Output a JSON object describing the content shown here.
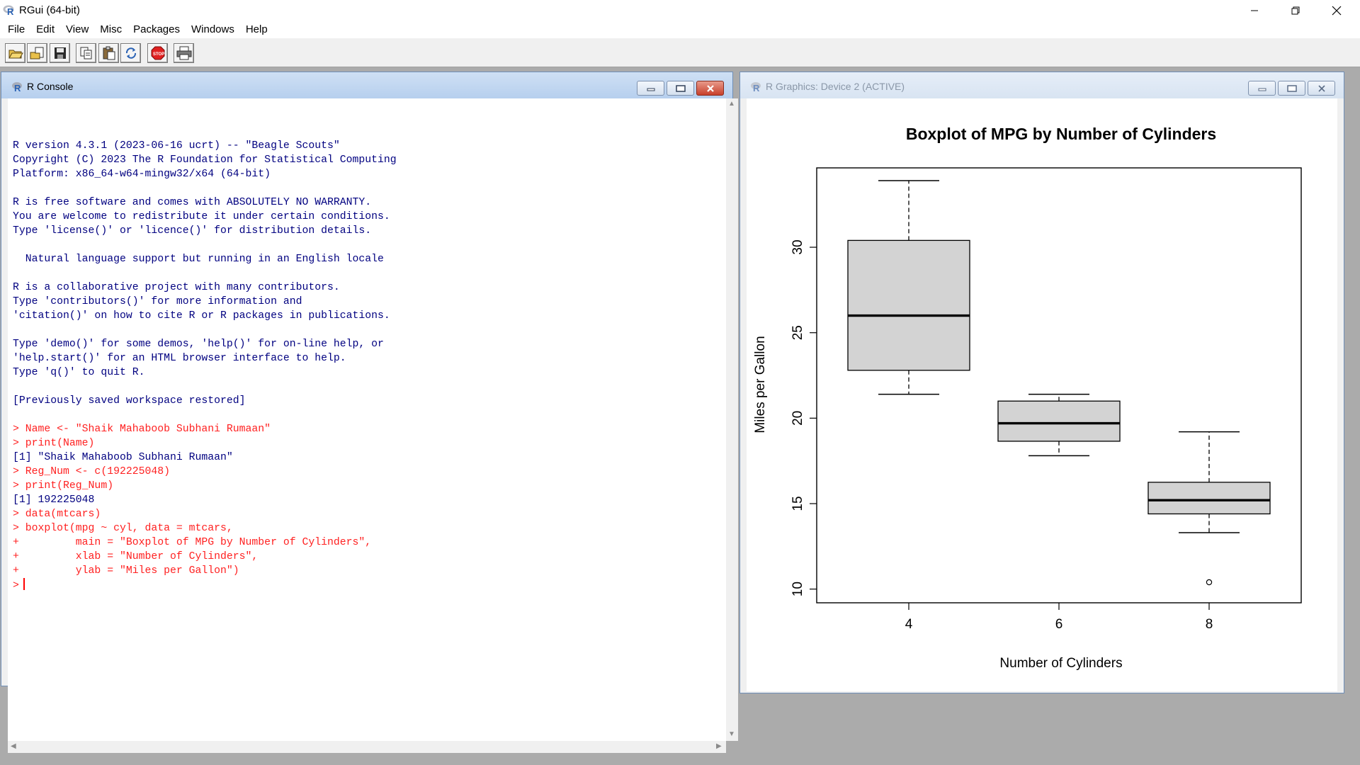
{
  "app": {
    "title": "RGui (64-bit)",
    "menu": [
      "File",
      "Edit",
      "View",
      "Misc",
      "Packages",
      "Windows",
      "Help"
    ],
    "toolbar": [
      "open-script-icon",
      "load-workspace-icon",
      "save-workspace-icon",
      "copy-icon",
      "paste-icon",
      "copy-paste-icon",
      "stop-icon",
      "print-icon"
    ]
  },
  "console_window": {
    "title": "R Console",
    "lines": [
      {
        "t": "out",
        "text": ""
      },
      {
        "t": "out",
        "text": "R version 4.3.1 (2023-06-16 ucrt) -- \"Beagle Scouts\""
      },
      {
        "t": "out",
        "text": "Copyright (C) 2023 The R Foundation for Statistical Computing"
      },
      {
        "t": "out",
        "text": "Platform: x86_64-w64-mingw32/x64 (64-bit)"
      },
      {
        "t": "out",
        "text": ""
      },
      {
        "t": "out",
        "text": "R is free software and comes with ABSOLUTELY NO WARRANTY."
      },
      {
        "t": "out",
        "text": "You are welcome to redistribute it under certain conditions."
      },
      {
        "t": "out",
        "text": "Type 'license()' or 'licence()' for distribution details."
      },
      {
        "t": "out",
        "text": ""
      },
      {
        "t": "out",
        "text": "  Natural language support but running in an English locale"
      },
      {
        "t": "out",
        "text": ""
      },
      {
        "t": "out",
        "text": "R is a collaborative project with many contributors."
      },
      {
        "t": "out",
        "text": "Type 'contributors()' for more information and"
      },
      {
        "t": "out",
        "text": "'citation()' on how to cite R or R packages in publications."
      },
      {
        "t": "out",
        "text": ""
      },
      {
        "t": "out",
        "text": "Type 'demo()' for some demos, 'help()' for on-line help, or"
      },
      {
        "t": "out",
        "text": "'help.start()' for an HTML browser interface to help."
      },
      {
        "t": "out",
        "text": "Type 'q()' to quit R."
      },
      {
        "t": "out",
        "text": ""
      },
      {
        "t": "out",
        "text": "[Previously saved workspace restored]"
      },
      {
        "t": "out",
        "text": ""
      },
      {
        "t": "in",
        "text": "> Name <- \"Shaik Mahaboob Subhani Rumaan\""
      },
      {
        "t": "in",
        "text": "> print(Name)"
      },
      {
        "t": "out",
        "text": "[1] \"Shaik Mahaboob Subhani Rumaan\""
      },
      {
        "t": "in",
        "text": "> Reg_Num <- c(192225048)"
      },
      {
        "t": "in",
        "text": "> print(Reg_Num)"
      },
      {
        "t": "out",
        "text": "[1] 192225048"
      },
      {
        "t": "in",
        "text": "> data(mtcars)"
      },
      {
        "t": "in",
        "text": "> boxplot(mpg ~ cyl, data = mtcars,"
      },
      {
        "t": "in",
        "text": "+         main = \"Boxplot of MPG by Number of Cylinders\","
      },
      {
        "t": "in",
        "text": "+         xlab = \"Number of Cylinders\","
      },
      {
        "t": "in",
        "text": "+         ylab = \"Miles per Gallon\")"
      }
    ],
    "prompt": ">"
  },
  "graphics_window": {
    "title": "R Graphics: Device 2 (ACTIVE)"
  },
  "chart_data": {
    "type": "boxplot",
    "title": "Boxplot of MPG by Number of Cylinders",
    "xlabel": "Number of Cylinders",
    "ylabel": "Miles per Gallon",
    "categories": [
      "4",
      "6",
      "8"
    ],
    "yticks": [
      10,
      15,
      20,
      25,
      30
    ],
    "ylim": [
      10.4,
      33.9
    ],
    "boxes": [
      {
        "category": "4",
        "min": 21.4,
        "q1": 22.8,
        "median": 26.0,
        "q3": 30.4,
        "max": 33.9,
        "outliers": []
      },
      {
        "category": "6",
        "min": 17.8,
        "q1": 18.65,
        "median": 19.7,
        "q3": 21.0,
        "max": 21.4,
        "outliers": []
      },
      {
        "category": "8",
        "min": 13.3,
        "q1": 14.4,
        "median": 15.2,
        "q3": 16.25,
        "max": 19.2,
        "outliers": [
          10.4
        ]
      }
    ],
    "box_fill": "#d3d3d3",
    "grid": false
  }
}
